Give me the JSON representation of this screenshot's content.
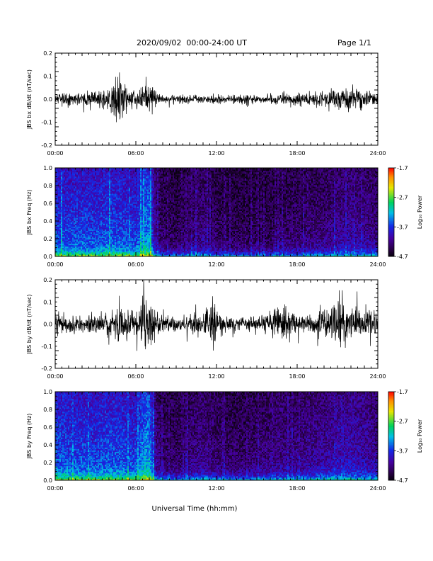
{
  "header": {
    "title": "2020/09/02  00:00-24:00 UT",
    "page": "Page 1/1"
  },
  "chart_data": [
    {
      "type": "line",
      "ylabel": "JBS bx dB/dt (nT/sec)",
      "xlabel": "",
      "x_ticks": [
        "00:00",
        "06:00",
        "12:00",
        "18:00",
        "24:00"
      ],
      "xlim": [
        0,
        24
      ],
      "ylim": [
        -0.2,
        0.2
      ],
      "y_ticks": [
        "0.2",
        "0.1",
        "0.0",
        "-0.1",
        "-0.2"
      ],
      "series": [
        {
          "values_x_hours": [
            0,
            1,
            2,
            3,
            4,
            4.5,
            5,
            5.5,
            6,
            6.5,
            7,
            7.5,
            8,
            9,
            10,
            11,
            12,
            13,
            14,
            15,
            16,
            17,
            18,
            19,
            20,
            21,
            22,
            23,
            24
          ],
          "envelope_amplitude": [
            0.03,
            0.03,
            0.03,
            0.04,
            0.05,
            0.11,
            0.12,
            0.05,
            0.04,
            0.05,
            0.08,
            0.04,
            0.02,
            0.02,
            0.02,
            0.02,
            0.02,
            0.02,
            0.02,
            0.02,
            0.02,
            0.03,
            0.03,
            0.03,
            0.04,
            0.05,
            0.06,
            0.04,
            0.03
          ]
        }
      ]
    },
    {
      "type": "heatmap",
      "ylabel": "JBS bx Freq (Hz)",
      "xlabel": "",
      "x_ticks": [
        "00:00",
        "06:00",
        "12:00",
        "18:00",
        "24:00"
      ],
      "xlim": [
        0,
        24
      ],
      "ylim": [
        0,
        1
      ],
      "y_ticks": [
        "1.0",
        "0.8",
        "0.6",
        "0.4",
        "0.2",
        "0.0"
      ],
      "colorbar": {
        "label": "Log₁₀ Power",
        "ticks": [
          "-1.7",
          "-2.7",
          "-3.7",
          "-4.7"
        ],
        "range": [
          -4.7,
          -1.7
        ]
      },
      "activity_x_hours": [
        0,
        1,
        2,
        3,
        4,
        5,
        6,
        6.5,
        7,
        7.5,
        8,
        9,
        10,
        11,
        12,
        13,
        14,
        15,
        16,
        17,
        18,
        19,
        20,
        21,
        22,
        23,
        24
      ],
      "activity_level": [
        0.72,
        0.7,
        0.72,
        0.7,
        0.75,
        0.72,
        0.68,
        0.85,
        0.9,
        0.35,
        0.25,
        0.22,
        0.3,
        0.35,
        0.25,
        0.22,
        0.2,
        0.2,
        0.22,
        0.28,
        0.28,
        0.3,
        0.32,
        0.38,
        0.42,
        0.38,
        0.34
      ]
    },
    {
      "type": "line",
      "ylabel": "JBS by dB/dt (nT/sec)",
      "xlabel": "",
      "x_ticks": [
        "00:00",
        "06:00",
        "12:00",
        "18:00",
        "24:00"
      ],
      "xlim": [
        0,
        24
      ],
      "ylim": [
        -0.2,
        0.2
      ],
      "y_ticks": [
        "0.2",
        "0.1",
        "0.0",
        "-0.1",
        "-0.2"
      ],
      "series": [
        {
          "values_x_hours": [
            0,
            1,
            2,
            3,
            4,
            4.5,
            5,
            5.5,
            6,
            6.5,
            7,
            7.5,
            8,
            9,
            10,
            11,
            11.8,
            12,
            13,
            14,
            15,
            16,
            16.5,
            17,
            18,
            19,
            20,
            21,
            22,
            23,
            24
          ],
          "envelope_amplitude": [
            0.05,
            0.04,
            0.04,
            0.05,
            0.06,
            0.08,
            0.09,
            0.07,
            0.06,
            0.12,
            0.18,
            0.06,
            0.04,
            0.04,
            0.04,
            0.05,
            0.14,
            0.06,
            0.04,
            0.04,
            0.04,
            0.06,
            0.1,
            0.08,
            0.06,
            0.05,
            0.08,
            0.15,
            0.07,
            0.08,
            0.06
          ]
        }
      ]
    },
    {
      "type": "heatmap",
      "ylabel": "JBS by Freq (Hz)",
      "xlabel": "Universal Time (hh:mm)",
      "x_ticks": [
        "00:00",
        "06:00",
        "12:00",
        "18:00",
        "24:00"
      ],
      "xlim": [
        0,
        24
      ],
      "ylim": [
        0,
        1
      ],
      "y_ticks": [
        "1.0",
        "0.8",
        "0.6",
        "0.4",
        "0.2",
        "0.0"
      ],
      "colorbar": {
        "label": "Log₁₀ Power",
        "ticks": [
          "-1.7",
          "-2.7",
          "-3.7",
          "-4.7"
        ],
        "range": [
          -4.7,
          -1.7
        ]
      },
      "activity_x_hours": [
        0,
        1,
        2,
        3,
        4,
        5,
        6,
        6.5,
        7,
        7.5,
        8,
        9,
        10,
        11,
        12,
        13,
        14,
        15,
        16,
        17,
        18,
        19,
        20,
        21,
        22,
        23,
        24
      ],
      "activity_level": [
        0.78,
        0.74,
        0.74,
        0.72,
        0.76,
        0.74,
        0.7,
        0.9,
        0.95,
        0.38,
        0.28,
        0.26,
        0.32,
        0.38,
        0.3,
        0.28,
        0.26,
        0.3,
        0.34,
        0.36,
        0.36,
        0.4,
        0.42,
        0.48,
        0.5,
        0.45,
        0.4
      ]
    }
  ]
}
